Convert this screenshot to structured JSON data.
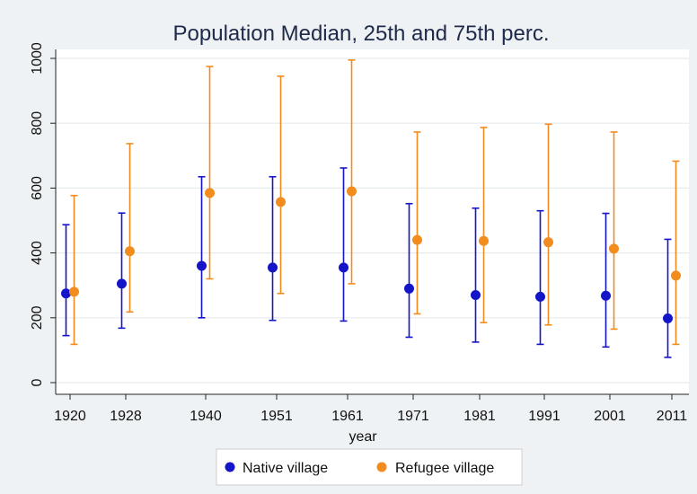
{
  "chart_data": {
    "type": "scatter",
    "title": "Population Median, 25th and 75th perc.",
    "xlabel": "year",
    "ylabel": "",
    "ylim": [
      0,
      1000
    ],
    "yticks": [
      "0",
      "200",
      "400",
      "600",
      "800",
      "1000"
    ],
    "categories": [
      "1920",
      "1928",
      "1940",
      "1951",
      "1961",
      "1971",
      "1981",
      "1991",
      "2001",
      "2011"
    ],
    "grid": "horizontal",
    "legend_position": "bottom",
    "series": [
      {
        "name": "Native village",
        "color": "#1414c8",
        "median": [
          275,
          305,
          360,
          355,
          355,
          290,
          270,
          265,
          268,
          198
        ],
        "p25": [
          145,
          168,
          200,
          192,
          190,
          140,
          125,
          118,
          110,
          78
        ],
        "p75": [
          487,
          523,
          635,
          635,
          662,
          552,
          538,
          530,
          522,
          442
        ]
      },
      {
        "name": "Refugee village",
        "color": "#f28c1e",
        "median": [
          280,
          405,
          585,
          557,
          590,
          440,
          437,
          433,
          413,
          330
        ],
        "p25": [
          118,
          218,
          320,
          275,
          305,
          212,
          185,
          178,
          165,
          118
        ],
        "p75": [
          577,
          737,
          975,
          945,
          995,
          773,
          787,
          797,
          773,
          683
        ]
      }
    ]
  }
}
